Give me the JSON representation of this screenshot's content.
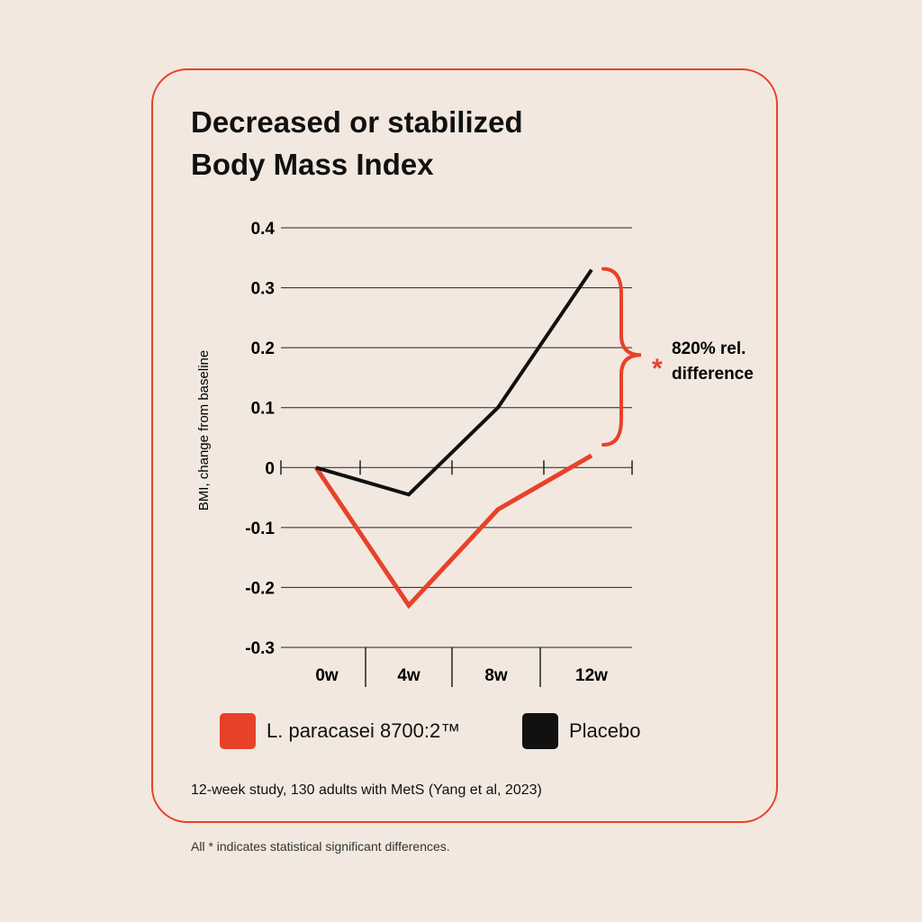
{
  "title_line1": "Decreased or stabilized",
  "title_line2": "Body Mass Index",
  "source": "12-week study, 130 adults with MetS (Yang et al, 2023)",
  "footnote": "All * indicates statistical significant differences.",
  "annotation": {
    "star": "*",
    "line1": "820% rel.",
    "line2": "difference",
    "color": "#e8412a"
  },
  "chart_data": {
    "type": "line",
    "categories": [
      "0w",
      "4w",
      "8w",
      "12w"
    ],
    "ylabel": "BMI, change from baseline",
    "ylim": [
      -0.3,
      0.4
    ],
    "yticks": [
      "0.4",
      "0.3",
      "0.2",
      "0.1",
      "0",
      "-0.1",
      "-0.2",
      "-0.3"
    ],
    "ytick_values": [
      0.4,
      0.3,
      0.2,
      0.1,
      0,
      -0.1,
      -0.2,
      -0.3
    ],
    "grid": true,
    "legend_position": "bottom",
    "series": [
      {
        "name": "L. paracasei 8700:2™",
        "color": "#e8412a",
        "values": [
          0,
          -0.23,
          -0.07,
          0.02
        ]
      },
      {
        "name": "Placebo",
        "color": "#111111",
        "values": [
          0,
          -0.045,
          0.1,
          0.33
        ]
      }
    ]
  }
}
